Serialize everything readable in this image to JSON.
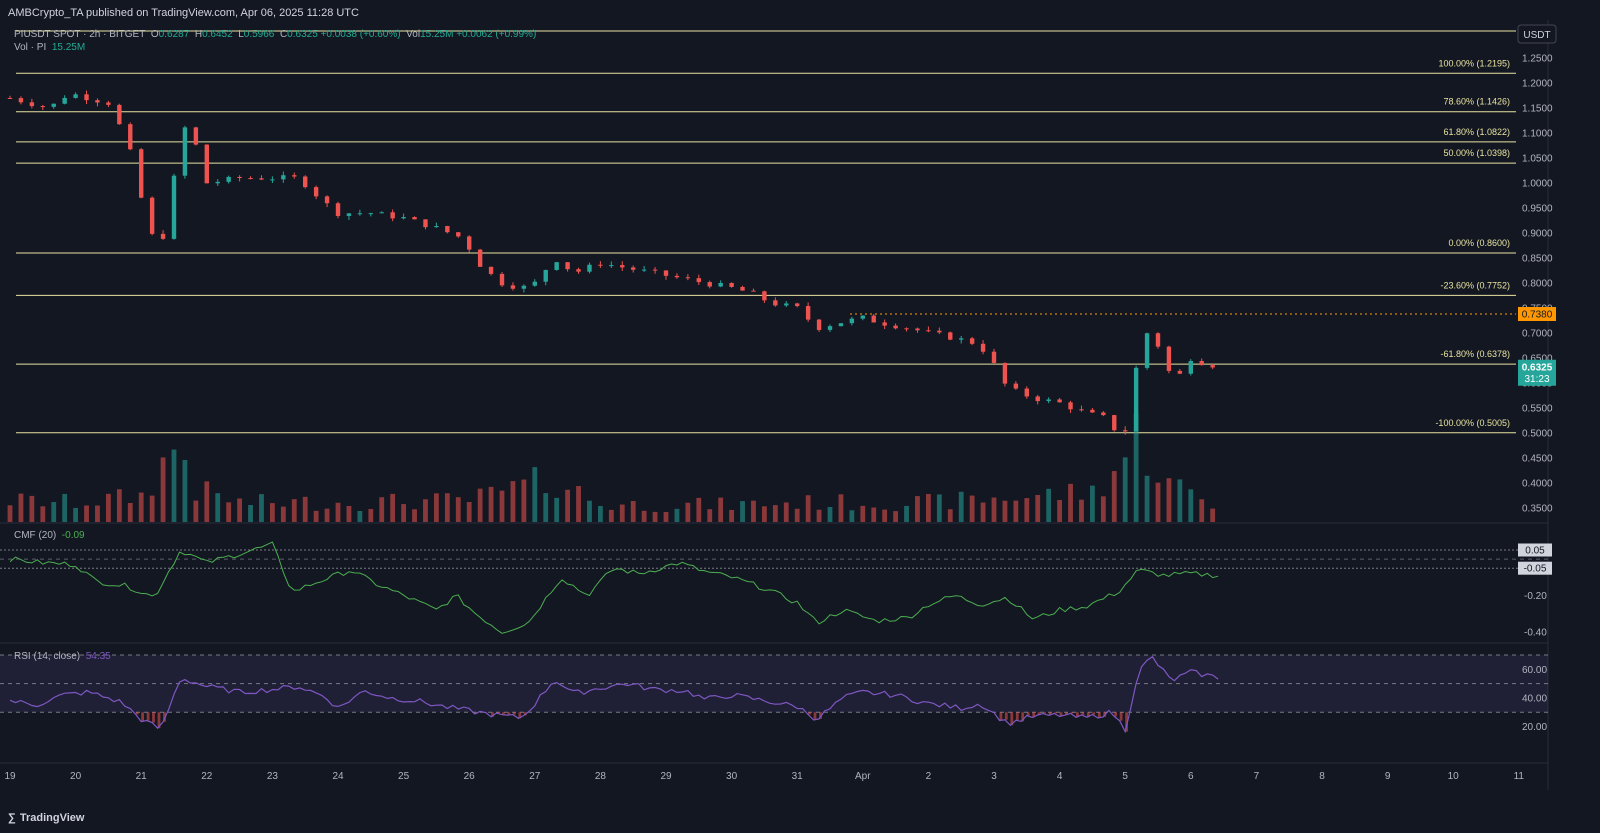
{
  "header": {
    "published": "AMBCrypto_TA published on TradingView.com, Apr 06, 2025 11:28 UTC"
  },
  "legend": {
    "symbol": "PIUSDT SPOT · 2h · BITGET",
    "o_label": "O",
    "o_value": "0.6287",
    "h_label": "H",
    "h_value": "0.6452",
    "l_label": "L",
    "l_value": "0.5966",
    "c_label": "C",
    "c_value": "0.6325 +0.0038 (+0.60%)",
    "vol_label": "Vol",
    "vol_value": "15.25M +0.0062 (+0.99%)",
    "vol_pi_label": "Vol · PI",
    "vol_pi_value": "15.25M",
    "cmf_label": "CMF (20)",
    "cmf_value": "-0.09",
    "rsi_label": "RSI (14, close)",
    "rsi_value": "54.35"
  },
  "footer": {
    "brand": "TradingView",
    "brand_icon": "tradingview-logo-icon"
  },
  "colors": {
    "up": "#26a69a",
    "down": "#ef5350",
    "fib": "#e8e3a0",
    "cmf": "#4caf50",
    "rsi": "#7e57c2",
    "bg": "#131722",
    "orange": "#ff9800"
  },
  "chart_data": {
    "type": "candlestick",
    "symbol": "PIUSDT",
    "currency": "USDT",
    "price_axis": {
      "range": [
        0.3,
        1.3
      ],
      "ticks": [
        "1.2500",
        "1.2000",
        "1.1500",
        "1.1000",
        "1.0500",
        "1.0000",
        "0.9500",
        "0.9000",
        "0.8500",
        "0.8000",
        "0.7500",
        "0.7000",
        "0.6500",
        "0.6000",
        "0.5500",
        "0.5000",
        "0.4500",
        "0.4000",
        "0.3500",
        "0.3000"
      ],
      "last_price": "0.6325",
      "countdown": "31:23",
      "marked_level": "0.7380"
    },
    "fib_levels": [
      {
        "label": "100.00% (1.2195)",
        "value": 1.2195
      },
      {
        "label": "78.60% (1.1426)",
        "value": 1.1426
      },
      {
        "label": "61.80% (1.0822)",
        "value": 1.0822
      },
      {
        "label": "50.00% (1.0398)",
        "value": 1.0398
      },
      {
        "label": "0.00% (0.8600)",
        "value": 0.86
      },
      {
        "label": "-23.60% (0.7752)",
        "value": 0.7752
      },
      {
        "label": "-61.80% (0.6378)",
        "value": 0.6378
      },
      {
        "label": "-100.00% (0.5005)",
        "value": 0.5005
      }
    ],
    "x_axis": {
      "labels": [
        "19",
        "20",
        "21",
        "22",
        "23",
        "24",
        "25",
        "26",
        "27",
        "28",
        "29",
        "30",
        "31",
        "Apr",
        "2",
        "3",
        "4",
        "5",
        "6",
        "7",
        "8",
        "9",
        "10",
        "11"
      ]
    },
    "price_path": [
      [
        19.0,
        1.17
      ],
      [
        19.3,
        1.16
      ],
      [
        19.6,
        1.15
      ],
      [
        19.9,
        1.18
      ],
      [
        20.2,
        1.17
      ],
      [
        20.5,
        1.16
      ],
      [
        20.8,
        1.08
      ],
      [
        21.0,
        0.97
      ],
      [
        21.2,
        0.88
      ],
      [
        21.4,
        0.9
      ],
      [
        21.6,
        1.12
      ],
      [
        21.8,
        1.09
      ],
      [
        22.0,
        1.0
      ],
      [
        22.5,
        1.01
      ],
      [
        23.0,
        1.01
      ],
      [
        23.4,
        1.01
      ],
      [
        23.8,
        0.96
      ],
      [
        24.0,
        0.94
      ],
      [
        24.5,
        0.94
      ],
      [
        25.0,
        0.93
      ],
      [
        25.5,
        0.91
      ],
      [
        25.9,
        0.89
      ],
      [
        26.2,
        0.83
      ],
      [
        26.5,
        0.8
      ],
      [
        26.8,
        0.79
      ],
      [
        27.0,
        0.8
      ],
      [
        27.3,
        0.85
      ],
      [
        27.6,
        0.82
      ],
      [
        28.0,
        0.84
      ],
      [
        28.4,
        0.83
      ],
      [
        28.8,
        0.82
      ],
      [
        29.2,
        0.81
      ],
      [
        29.6,
        0.8
      ],
      [
        30.0,
        0.79
      ],
      [
        30.3,
        0.78
      ],
      [
        30.6,
        0.76
      ],
      [
        31.0,
        0.75
      ],
      [
        31.3,
        0.71
      ],
      [
        31.6,
        0.72
      ],
      [
        32.0,
        0.73
      ],
      [
        32.3,
        0.72
      ],
      [
        32.7,
        0.71
      ],
      [
        33.0,
        0.7
      ],
      [
        33.4,
        0.69
      ],
      [
        33.7,
        0.68
      ],
      [
        33.9,
        0.66
      ],
      [
        34.2,
        0.59
      ],
      [
        34.6,
        0.57
      ],
      [
        35.0,
        0.56
      ],
      [
        35.4,
        0.54
      ],
      [
        35.7,
        0.53
      ],
      [
        35.95,
        0.49
      ],
      [
        36.05,
        0.52
      ],
      [
        36.2,
        0.66
      ],
      [
        36.4,
        0.72
      ],
      [
        36.6,
        0.63
      ],
      [
        36.8,
        0.61
      ],
      [
        37.0,
        0.65
      ],
      [
        37.2,
        0.64
      ],
      [
        37.45,
        0.6325
      ]
    ],
    "volume_path": [
      [
        19.0,
        10
      ],
      [
        20.0,
        9
      ],
      [
        21.0,
        12
      ],
      [
        21.6,
        38
      ],
      [
        21.8,
        15
      ],
      [
        22.5,
        9
      ],
      [
        24.0,
        9
      ],
      [
        26.0,
        10
      ],
      [
        27.3,
        20
      ],
      [
        28.0,
        8
      ],
      [
        30.0,
        8
      ],
      [
        31.0,
        9
      ],
      [
        33.0,
        9
      ],
      [
        34.5,
        12
      ],
      [
        35.5,
        14
      ],
      [
        36.0,
        30
      ],
      [
        36.2,
        42
      ],
      [
        36.6,
        18
      ],
      [
        37.0,
        14
      ],
      [
        37.45,
        6
      ]
    ],
    "cmf": {
      "current": -0.09,
      "level_lines": [
        0.05,
        -0.05
      ],
      "axis_ticks": [
        "0.05",
        "-0.05",
        "-0.20",
        "-0.40"
      ],
      "path": [
        [
          19.0,
          0.0
        ],
        [
          19.5,
          -0.02
        ],
        [
          20.0,
          -0.03
        ],
        [
          20.3,
          -0.12
        ],
        [
          20.8,
          -0.15
        ],
        [
          21.2,
          -0.21
        ],
        [
          21.6,
          0.05
        ],
        [
          22.0,
          -0.02
        ],
        [
          22.5,
          0.03
        ],
        [
          23.0,
          0.08
        ],
        [
          23.3,
          -0.18
        ],
        [
          23.8,
          -0.11
        ],
        [
          24.2,
          -0.06
        ],
        [
          24.6,
          -0.14
        ],
        [
          25.0,
          -0.2
        ],
        [
          25.5,
          -0.28
        ],
        [
          25.8,
          -0.2
        ],
        [
          26.1,
          -0.3
        ],
        [
          26.5,
          -0.4
        ],
        [
          26.9,
          -0.35
        ],
        [
          27.4,
          -0.1
        ],
        [
          27.8,
          -0.2
        ],
        [
          28.2,
          -0.05
        ],
        [
          28.6,
          -0.08
        ],
        [
          29.2,
          -0.02
        ],
        [
          29.6,
          -0.07
        ],
        [
          30.0,
          -0.1
        ],
        [
          30.5,
          -0.16
        ],
        [
          31.0,
          -0.24
        ],
        [
          31.3,
          -0.35
        ],
        [
          31.7,
          -0.28
        ],
        [
          32.2,
          -0.34
        ],
        [
          32.7,
          -0.32
        ],
        [
          33.0,
          -0.25
        ],
        [
          33.4,
          -0.2
        ],
        [
          33.8,
          -0.25
        ],
        [
          34.2,
          -0.21
        ],
        [
          34.6,
          -0.33
        ],
        [
          35.0,
          -0.28
        ],
        [
          35.4,
          -0.26
        ],
        [
          35.9,
          -0.18
        ],
        [
          36.2,
          -0.06
        ],
        [
          36.6,
          -0.09
        ],
        [
          37.0,
          -0.08
        ],
        [
          37.45,
          -0.09
        ]
      ]
    },
    "rsi": {
      "current": 54.35,
      "band": [
        30,
        70
      ],
      "midline": 50,
      "axis_ticks": [
        "60.00",
        "40.00",
        "20.00"
      ],
      "path": [
        [
          19.0,
          38
        ],
        [
          19.4,
          35
        ],
        [
          19.8,
          42
        ],
        [
          20.2,
          44
        ],
        [
          20.7,
          37
        ],
        [
          21.0,
          25
        ],
        [
          21.3,
          18
        ],
        [
          21.6,
          54
        ],
        [
          22.0,
          48
        ],
        [
          22.5,
          44
        ],
        [
          23.0,
          46
        ],
        [
          23.4,
          48
        ],
        [
          23.8,
          41
        ],
        [
          24.0,
          33
        ],
        [
          24.4,
          45
        ],
        [
          24.8,
          40
        ],
        [
          25.2,
          38
        ],
        [
          25.6,
          34
        ],
        [
          26.0,
          31
        ],
        [
          26.4,
          28
        ],
        [
          26.8,
          26
        ],
        [
          27.0,
          36
        ],
        [
          27.3,
          53
        ],
        [
          27.6,
          43
        ],
        [
          28.0,
          47
        ],
        [
          28.4,
          50
        ],
        [
          28.8,
          46
        ],
        [
          29.3,
          45
        ],
        [
          29.6,
          39
        ],
        [
          30.0,
          42
        ],
        [
          30.5,
          38
        ],
        [
          31.0,
          34
        ],
        [
          31.3,
          25
        ],
        [
          31.7,
          40
        ],
        [
          32.0,
          44
        ],
        [
          32.5,
          42
        ],
        [
          33.0,
          36
        ],
        [
          33.5,
          33
        ],
        [
          33.8,
          36
        ],
        [
          34.2,
          22
        ],
        [
          34.6,
          27
        ],
        [
          35.0,
          28
        ],
        [
          35.4,
          26
        ],
        [
          35.8,
          30
        ],
        [
          36.0,
          18
        ],
        [
          36.2,
          58
        ],
        [
          36.4,
          69
        ],
        [
          36.7,
          52
        ],
        [
          37.0,
          58
        ],
        [
          37.45,
          54
        ]
      ]
    }
  }
}
